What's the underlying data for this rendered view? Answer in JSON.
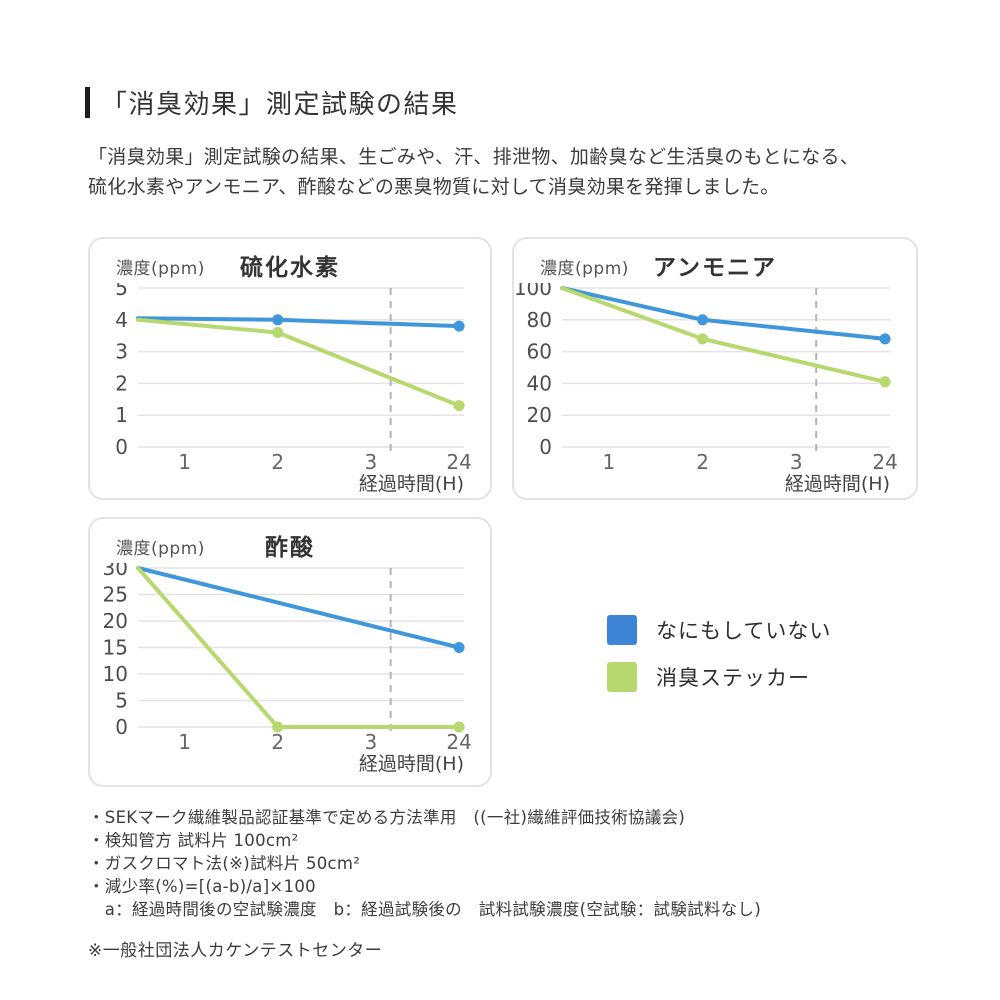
{
  "page": {
    "title": "「消臭効果」測定試験の結果",
    "intro_line1": "「消臭効果」測定試験の結果、生ごみや、汗、排泄物、加齢臭など生活臭のもとになる、",
    "intro_line2": "硫化水素やアンモニア、酢酸などの悪臭物質に対して消臭効果を発揮しました。"
  },
  "colors": {
    "untreated_blue": "#3f96da",
    "sticker_green": "#b7d86e",
    "legend_blue": "#3d84d7",
    "grid_gray": "#e3e3e3",
    "dashed_gray": "#b3b3b3"
  },
  "legend": {
    "items": [
      {
        "key": "untreated",
        "label": "なにもしていない",
        "color": "#3d84d7"
      },
      {
        "key": "sticker",
        "label": "消臭ステッカー",
        "color": "#b7d86e"
      }
    ]
  },
  "chart_data": [
    {
      "type": "line",
      "title": "硫化水素",
      "ylabel": "濃度(ppm)",
      "xlabel": "経過時間(H)",
      "x_ticks": [
        "1",
        "2",
        "3",
        "24"
      ],
      "y_ticks": [
        0,
        1,
        2,
        3,
        4,
        5
      ],
      "ylim": [
        0,
        5
      ],
      "axis_break_guide": true,
      "series": [
        {
          "key": "untreated",
          "name": "なにもしていない",
          "color": "#3f96da",
          "points": [
            {
              "t": 0,
              "v": 4.05
            },
            {
              "t": 2,
              "v": 4.0,
              "dot": true
            },
            {
              "t": 24,
              "v": 3.8,
              "dot": true
            }
          ]
        },
        {
          "key": "sticker",
          "name": "消臭ステッカー",
          "color": "#b7d86e",
          "points": [
            {
              "t": 0,
              "v": 4.0
            },
            {
              "t": 2,
              "v": 3.6,
              "dot": true
            },
            {
              "t": 24,
              "v": 1.3,
              "dot": true
            }
          ]
        }
      ]
    },
    {
      "type": "line",
      "title": "アンモニア",
      "ylabel": "濃度(ppm)",
      "xlabel": "経過時間(H)",
      "x_ticks": [
        "1",
        "2",
        "3",
        "24"
      ],
      "y_ticks": [
        0,
        20,
        40,
        60,
        80,
        100
      ],
      "ylim": [
        0,
        100
      ],
      "axis_break_guide": true,
      "series": [
        {
          "key": "untreated",
          "name": "なにもしていない",
          "color": "#3f96da",
          "points": [
            {
              "t": 0,
              "v": 100
            },
            {
              "t": 2,
              "v": 80,
              "dot": true
            },
            {
              "t": 24,
              "v": 68,
              "dot": true
            }
          ]
        },
        {
          "key": "sticker",
          "name": "消臭ステッカー",
          "color": "#b7d86e",
          "points": [
            {
              "t": 0,
              "v": 100
            },
            {
              "t": 2,
              "v": 68,
              "dot": true
            },
            {
              "t": 24,
              "v": 41,
              "dot": true
            }
          ]
        }
      ]
    },
    {
      "type": "line",
      "title": "酢酸",
      "ylabel": "濃度(ppm)",
      "xlabel": "経過時間(H)",
      "x_ticks": [
        "1",
        "2",
        "3",
        "24"
      ],
      "y_ticks": [
        0,
        5,
        10,
        15,
        20,
        25,
        30
      ],
      "ylim": [
        0,
        30
      ],
      "axis_break_guide": true,
      "series": [
        {
          "key": "untreated",
          "name": "なにもしていない",
          "color": "#3f96da",
          "points": [
            {
              "t": 0,
              "v": 30
            },
            {
              "t": 24,
              "v": 15,
              "dot": true
            }
          ]
        },
        {
          "key": "sticker",
          "name": "消臭ステッカー",
          "color": "#b7d86e",
          "points": [
            {
              "t": 0,
              "v": 30
            },
            {
              "t": 2,
              "v": 0,
              "dot": true
            },
            {
              "t": 24,
              "v": 0,
              "dot": true
            }
          ]
        }
      ]
    }
  ],
  "notes": [
    "・SEKマーク繊維製品認証基準で定める方法準用　((一社)繊維評価技術協議会)",
    "・検知管方 試料片 100cm²",
    "・ガスクロマト法(※)試料片 50cm²",
    "・減少率(%)=[(a-b)/a]×100",
    "　a：経過時間後の空試験濃度　b：経過試験後の　試料試験濃度(空試験：試験試料なし)"
  ],
  "footnote": "※一般社団法人カケンテストセンター"
}
